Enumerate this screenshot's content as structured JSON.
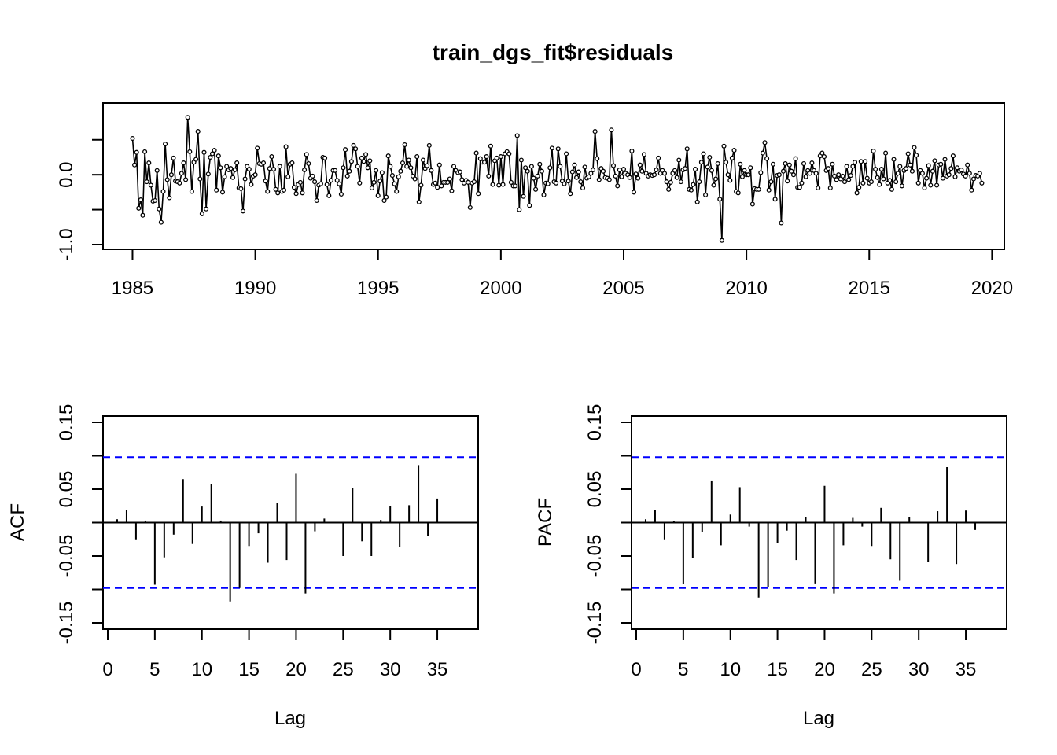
{
  "title": "train_dgs_fit$residuals",
  "colors": {
    "ci_line": "#0000ff",
    "series": "#000000"
  },
  "chart_data": [
    {
      "type": "line",
      "title": "train_dgs_fit$residuals",
      "xlabel": "",
      "ylabel": "",
      "x_ticks": [
        "1985",
        "1990",
        "1995",
        "2000",
        "2005",
        "2010",
        "2015",
        "2020"
      ],
      "y_ticks": [
        "-1.0",
        "-0.5",
        "0.0",
        "0.5"
      ],
      "y_tick_labels_shown": [
        "-1.0",
        "",
        "0.0",
        ""
      ],
      "xlim": [
        1983.8,
        2020.5
      ],
      "ylim": [
        -1.0,
        0.88
      ],
      "x_start": 1985.0,
      "frequency": 12,
      "marker": "open-circle",
      "values": [
        0.52,
        0.14,
        0.32,
        -0.48,
        -0.36,
        -0.58,
        0.33,
        -0.1,
        0.17,
        -0.15,
        -0.38,
        -0.37,
        0.06,
        -0.49,
        -0.68,
        -0.24,
        0.44,
        -0.07,
        -0.33,
        0.0,
        0.24,
        -0.09,
        -0.1,
        -0.12,
        0.02,
        0.17,
        -0.07,
        0.82,
        0.33,
        -0.24,
        0.18,
        0.22,
        0.62,
        -0.06,
        -0.56,
        0.32,
        -0.49,
        0.01,
        0.25,
        0.3,
        0.35,
        -0.22,
        0.27,
        0.1,
        -0.25,
        -0.03,
        0.12,
        0.07,
        0.09,
        -0.04,
        0.07,
        0.17,
        -0.19,
        -0.2,
        -0.52,
        -0.06,
        0.12,
        0.08,
        -0.14,
        -0.02,
        0.0,
        0.38,
        0.16,
        0.15,
        0.17,
        -0.09,
        -0.24,
        0.09,
        0.26,
        0.08,
        -0.21,
        -0.26,
        0.12,
        -0.24,
        -0.22,
        0.4,
        -0.03,
        0.15,
        0.17,
        -0.18,
        -0.27,
        -0.14,
        -0.11,
        -0.26,
        0.07,
        0.29,
        0.16,
        -0.05,
        -0.02,
        -0.1,
        -0.37,
        -0.15,
        -0.13,
        0.25,
        0.24,
        -0.14,
        -0.3,
        -0.08,
        0.06,
        0.06,
        -0.08,
        -0.13,
        -0.28,
        0.1,
        0.36,
        -0.02,
        0.05,
        0.19,
        0.42,
        0.37,
        0.12,
        -0.12,
        0.24,
        0.19,
        0.29,
        0.1,
        0.2,
        -0.19,
        -0.11,
        0.06,
        -0.3,
        -0.09,
        0.03,
        -0.37,
        -0.32,
        0.27,
        0.12,
        -0.01,
        -0.13,
        -0.24,
        -0.03,
        0.05,
        0.17,
        0.43,
        0.12,
        0.21,
        0.1,
        -0.02,
        -0.06,
        0.26,
        -0.39,
        -0.15,
        0.21,
        0.09,
        0.13,
        0.42,
        0.06,
        -0.14,
        -0.12,
        -0.18,
        0.14,
        -0.16,
        -0.11,
        -0.11,
        -0.11,
        -0.06,
        -0.23,
        0.12,
        0.06,
        0.03,
        0.04,
        -0.07,
        -0.12,
        -0.08,
        -0.11,
        -0.47,
        -0.12,
        -0.1,
        0.31,
        -0.27,
        0.23,
        0.18,
        0.18,
        0.26,
        -0.02,
        0.41,
        -0.14,
        0.2,
        0.24,
        -0.15,
        0.26,
        -0.14,
        0.3,
        0.33,
        0.3,
        -0.11,
        -0.16,
        -0.16,
        0.56,
        -0.5,
        0.21,
        -0.31,
        0.1,
        0.05,
        -0.44,
        0.12,
        -0.05,
        -0.21,
        -0.02,
        0.15,
        0.05,
        -0.29,
        -0.12,
        -0.13,
        0.1,
        0.38,
        -0.1,
        -0.12,
        0.37,
        0.12,
        -0.09,
        -0.13,
        0.3,
        -0.09,
        -0.27,
        0.04,
        0.14,
        -0.04,
        0.04,
        -0.1,
        -0.19,
        0.11,
        -0.05,
        -0.03,
        0.02,
        0.07,
        0.62,
        0.23,
        -0.07,
        0.09,
        0.05,
        -0.04,
        -0.05,
        -0.07,
        0.64,
        0.13,
        -0.02,
        -0.16,
        0.07,
        -0.03,
        0.08,
        0.02,
        0.0,
        -0.04,
        0.34,
        -0.25,
        0.01,
        -0.05,
        0.14,
        0.05,
        0.29,
        0.02,
        -0.02,
        0.0,
        -0.01,
        0.0,
        0.07,
        0.24,
        0.02,
        0.06,
        0.02,
        -0.1,
        -0.21,
        -0.11,
        0.02,
        0.06,
        -0.04,
        0.21,
        -0.1,
        0.07,
        0.09,
        0.37,
        -0.21,
        -0.22,
        -0.14,
        0.08,
        -0.39,
        -0.1,
        0.18,
        0.3,
        -0.29,
        0.11,
        0.25,
        0.06,
        -0.15,
        -0.06,
        0.16,
        -0.35,
        -0.94,
        0.41,
        0.18,
        0.0,
        -0.08,
        0.24,
        0.35,
        -0.24,
        -0.26,
        0.15,
        -0.03,
        0.06,
        0.0,
        0.0,
        0.1,
        -0.42,
        -0.2,
        -0.21,
        -0.21,
        0.03,
        0.31,
        0.46,
        0.23,
        -0.22,
        -0.1,
        0.15,
        -0.35,
        -0.01,
        0.0,
        -0.69,
        0.05,
        0.16,
        -0.09,
        0.14,
        0.05,
        0.0,
        0.23,
        -0.18,
        -0.18,
        -0.12,
        0.16,
        -0.03,
        0.06,
        0.02,
        0.17,
        0.06,
        0.02,
        -0.19,
        0.27,
        0.31,
        0.26,
        0.06,
        0.09,
        -0.19,
        0.15,
        -0.02,
        -0.07,
        0.0,
        -0.06,
        -0.02,
        -0.1,
        0.12,
        -0.07,
        -0.01,
        0.12,
        0.18,
        -0.26,
        -0.18,
        0.19,
        -0.12,
        0.19,
        -0.05,
        -0.12,
        -0.1,
        0.34,
        0.08,
        -0.04,
        -0.14,
        0.08,
        -0.06,
        0.31,
        -0.12,
        -0.08,
        -0.21,
        0.22,
        -0.1,
        0.02,
        0.12,
        -0.16,
        0.06,
        0.09,
        0.3,
        0.14,
        0.05,
        0.39,
        0.28,
        -0.12,
        0.06,
        0.02,
        -0.19,
        -0.05,
        0.13,
        -0.15,
        0.05,
        0.2,
        -0.15,
        0.14,
        0.15,
        -0.05,
        0.22,
        -0.02,
        0.0,
        0.09,
        0.27,
        -0.03,
        0.1,
        0.05,
        0.07,
        0.01,
        -0.02,
        0.14,
        0.02,
        -0.22,
        -0.06,
        -0.01,
        -0.02,
        0.02,
        -0.12
      ]
    },
    {
      "type": "bar",
      "title": "",
      "xlabel": "Lag",
      "ylabel": "ACF",
      "x_ticks": [
        "0",
        "5",
        "10",
        "15",
        "20",
        "25",
        "30",
        "35"
      ],
      "y_ticks": [
        "-0.15",
        "-0.05",
        "0.05",
        "0.15"
      ],
      "y_minor_ticks": [
        "-0.10",
        "0.00",
        "0.10"
      ],
      "xlim": [
        0,
        37
      ],
      "ylim": [
        -0.15,
        0.15
      ],
      "ci": 0.098,
      "x": [
        1,
        2,
        3,
        4,
        5,
        6,
        7,
        8,
        9,
        10,
        11,
        12,
        13,
        14,
        15,
        16,
        17,
        18,
        19,
        20,
        21,
        22,
        23,
        24,
        25,
        26,
        27,
        28,
        29,
        30,
        31,
        32,
        33,
        34,
        35
      ],
      "values": [
        0.005,
        0.019,
        -0.025,
        0.003,
        -0.093,
        -0.052,
        -0.018,
        0.065,
        -0.032,
        0.024,
        0.058,
        0.003,
        -0.118,
        -0.098,
        -0.035,
        -0.016,
        -0.06,
        0.03,
        -0.056,
        0.073,
        -0.106,
        -0.013,
        0.006,
        -0.001,
        -0.05,
        0.052,
        -0.028,
        -0.05,
        0.004,
        0.025,
        -0.036,
        0.026,
        0.086,
        -0.02,
        0.036
      ]
    },
    {
      "type": "bar",
      "title": "",
      "xlabel": "Lag",
      "ylabel": "PACF",
      "x_ticks": [
        "0",
        "5",
        "10",
        "15",
        "20",
        "25",
        "30",
        "35"
      ],
      "y_ticks": [
        "-0.15",
        "-0.05",
        "0.05",
        "0.15"
      ],
      "y_minor_ticks": [
        "-0.10",
        "0.00",
        "0.10"
      ],
      "xlim": [
        0,
        37
      ],
      "ylim": [
        -0.15,
        0.15
      ],
      "ci": 0.098,
      "x": [
        1,
        2,
        3,
        4,
        5,
        6,
        7,
        8,
        9,
        10,
        11,
        12,
        13,
        14,
        15,
        16,
        17,
        18,
        19,
        20,
        21,
        22,
        23,
        24,
        25,
        26,
        27,
        28,
        29,
        30,
        31,
        32,
        33,
        34,
        35,
        36
      ],
      "values": [
        0.005,
        0.019,
        -0.025,
        0.002,
        -0.092,
        -0.053,
        -0.014,
        0.063,
        -0.034,
        0.012,
        0.053,
        -0.006,
        -0.112,
        -0.097,
        -0.031,
        -0.012,
        -0.056,
        0.008,
        -0.091,
        0.055,
        -0.106,
        -0.034,
        0.007,
        -0.006,
        -0.035,
        0.022,
        -0.055,
        -0.087,
        0.008,
        0.001,
        -0.059,
        0.017,
        0.083,
        -0.062,
        0.018,
        -0.011
      ]
    }
  ]
}
